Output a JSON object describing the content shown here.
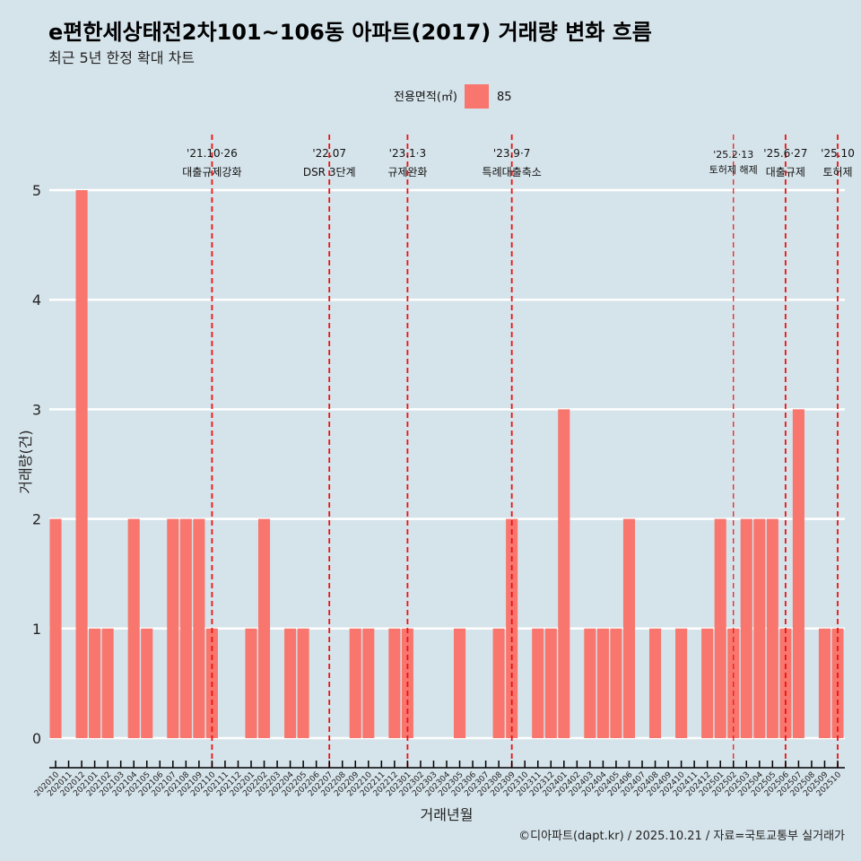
{
  "header": {
    "title": "e편한세상태전2차101~106동 아파트(2017) 거래량 변화 흐름",
    "subtitle": "최근 5년 한정 확대 차트"
  },
  "legend": {
    "title": "전용면적(㎡)",
    "items": [
      {
        "label": "85",
        "color": "#f8766d"
      }
    ]
  },
  "caption": "©디아파트(dapt.kr) / 2025.10.21 / 자료=국토교통부 실거래가",
  "colors": {
    "background": "#d5e3ea",
    "bar": "#f8766d",
    "vline": "#ee1111",
    "grid": "#ffffff"
  },
  "chart_data": {
    "type": "bar",
    "title": "e편한세상태전2차101~106동 아파트(2017) 거래량 변화 흐름",
    "xlabel": "거래년월",
    "ylabel": "거래량(건)",
    "ylim": [
      -0.25,
      5.3
    ],
    "yticks": [
      0,
      1,
      2,
      3,
      4,
      5
    ],
    "grid": true,
    "legend_position": "top",
    "categories": [
      "202010",
      "202011",
      "202012",
      "202101",
      "202102",
      "202103",
      "202104",
      "202105",
      "202106",
      "202107",
      "202108",
      "202109",
      "202110",
      "202111",
      "202112",
      "202201",
      "202202",
      "202203",
      "202204",
      "202205",
      "202206",
      "202207",
      "202208",
      "202209",
      "202210",
      "202211",
      "202212",
      "202301",
      "202302",
      "202303",
      "202304",
      "202305",
      "202306",
      "202307",
      "202308",
      "202309",
      "202310",
      "202311",
      "202312",
      "202401",
      "202402",
      "202403",
      "202404",
      "202405",
      "202406",
      "202407",
      "202408",
      "202409",
      "202410",
      "202411",
      "202412",
      "202501",
      "202502",
      "202503",
      "202504",
      "202505",
      "202506",
      "202507",
      "202508",
      "202509",
      "202510"
    ],
    "series": [
      {
        "name": "85",
        "values": [
          2,
          0,
          5,
          1,
          1,
          0,
          2,
          1,
          0,
          2,
          2,
          2,
          1,
          0,
          0,
          1,
          2,
          0,
          1,
          1,
          0,
          0,
          0,
          1,
          1,
          0,
          1,
          1,
          0,
          0,
          0,
          1,
          0,
          0,
          1,
          2,
          0,
          1,
          1,
          3,
          0,
          1,
          1,
          1,
          2,
          0,
          1,
          0,
          1,
          0,
          1,
          2,
          1,
          2,
          2,
          2,
          1,
          3,
          0,
          1,
          1
        ]
      }
    ],
    "annotations": [
      {
        "at": "202110",
        "date": "'21.10·26",
        "text": "대출규제강화",
        "minor": false
      },
      {
        "at": "202207",
        "date": "'22.07",
        "text": "DSR 3단계",
        "minor": false
      },
      {
        "at": "202301",
        "date": "'23.1·3",
        "text": "규제완화",
        "minor": false
      },
      {
        "at": "202309",
        "date": "'23.9·7",
        "text": "특례대출축소",
        "minor": false
      },
      {
        "at": "202502",
        "date": "'25.2·13",
        "text": "토허제 해제",
        "minor": true
      },
      {
        "at": "202506",
        "date": "'25.6·27",
        "text": "대출규제",
        "minor": false
      },
      {
        "at": "202510",
        "date": "'25.10",
        "text": "토허제",
        "minor": false
      }
    ]
  }
}
